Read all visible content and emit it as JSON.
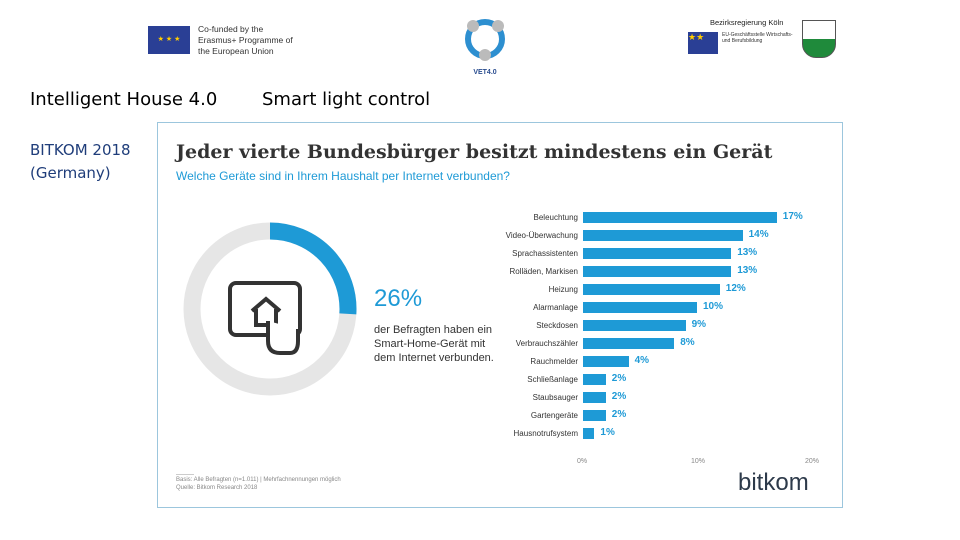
{
  "header": {
    "eu_logo_text": "Co-funded by the Erasmus+ Programme of the European Union",
    "vet_logo_text": "VET4.0",
    "koeln_logo_text": "Bezirksregierung Köln",
    "koeln_logo_sub": "EU-Geschäftsstelle Wirtschafts- und Berufsbildung"
  },
  "slide": {
    "title": "Intelligent House 4.0",
    "subtitle": "Smart light control",
    "source_line1": "BITKOM 2018",
    "source_line2": "(Germany)"
  },
  "infographic": {
    "title": "Jeder vierte Bundesbürger besitzt mindestens ein Gerät",
    "subtitle": "Welche Geräte sind in Ihrem Haushalt per Internet verbunden?",
    "donut_value": "26%",
    "donut_fraction": 0.26,
    "donut_text": "der Befragten haben ein Smart-Home-Gerät mit dem Internet verbunden.",
    "footnote1": "Basis: Alle Befragten (n=1.011) | Mehrfachnennungen möglich",
    "footnote2": "Quelle: Bitkom Research 2018",
    "brand": "bitkom",
    "colors": {
      "accent": "#1e9ad6",
      "ring": "#e6e6e6"
    }
  },
  "chart_data": {
    "type": "bar",
    "orientation": "horizontal",
    "categories": [
      "Beleuchtung",
      "Video-Überwachung",
      "Sprachassistenten",
      "Rolläden, Markisen",
      "Heizung",
      "Alarmanlage",
      "Steckdosen",
      "Verbrauchszähler",
      "Rauchmelder",
      "Schließanlage",
      "Staubsauger",
      "Gartengeräte",
      "Hausnotrufsystem"
    ],
    "values": [
      17,
      14,
      13,
      13,
      12,
      10,
      9,
      8,
      4,
      2,
      2,
      2,
      1
    ],
    "value_labels": [
      "17%",
      "14%",
      "13%",
      "13%",
      "12%",
      "10%",
      "9%",
      "8%",
      "4%",
      "2%",
      "2%",
      "2%",
      "1%"
    ],
    "xlim": [
      0,
      20
    ],
    "ticks": [
      "0%",
      "10%",
      "20%"
    ],
    "grid": false
  }
}
